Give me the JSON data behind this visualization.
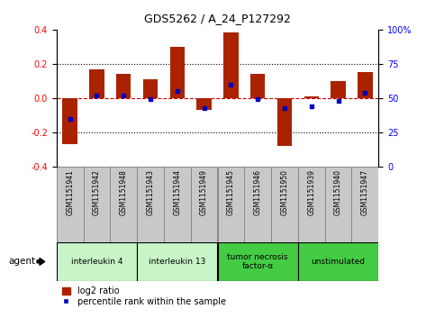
{
  "title": "GDS5262 / A_24_P127292",
  "samples": [
    "GSM1151941",
    "GSM1151942",
    "GSM1151948",
    "GSM1151943",
    "GSM1151944",
    "GSM1151949",
    "GSM1151945",
    "GSM1151946",
    "GSM1151950",
    "GSM1151939",
    "GSM1151940",
    "GSM1151947"
  ],
  "log2_ratio": [
    -0.27,
    0.17,
    0.14,
    0.11,
    0.3,
    -0.07,
    0.38,
    0.14,
    -0.28,
    0.01,
    0.1,
    0.15
  ],
  "percentile_rank": [
    35,
    52,
    52,
    49,
    55,
    43,
    60,
    49,
    43,
    44,
    48,
    54
  ],
  "groups": [
    {
      "label": "interleukin 4",
      "start": 0,
      "end": 3,
      "color": "#c8f5c8"
    },
    {
      "label": "interleukin 13",
      "start": 3,
      "end": 6,
      "color": "#c8f5c8"
    },
    {
      "label": "tumor necrosis\nfactor-α",
      "start": 6,
      "end": 9,
      "color": "#44cc44"
    },
    {
      "label": "unstimulated",
      "start": 9,
      "end": 12,
      "color": "#44cc44"
    }
  ],
  "ylim": [
    -0.4,
    0.4
  ],
  "yticks_left": [
    -0.4,
    -0.2,
    0.0,
    0.2,
    0.4
  ],
  "yticks_right_vals": [
    0,
    25,
    50,
    75,
    100
  ],
  "bar_color": "#aa2200",
  "marker_color": "#0000bb",
  "bg_color": "#ffffff",
  "plot_bg": "#ffffff",
  "dashed_color": "#cc0000",
  "label_bg": "#c8c8c8"
}
